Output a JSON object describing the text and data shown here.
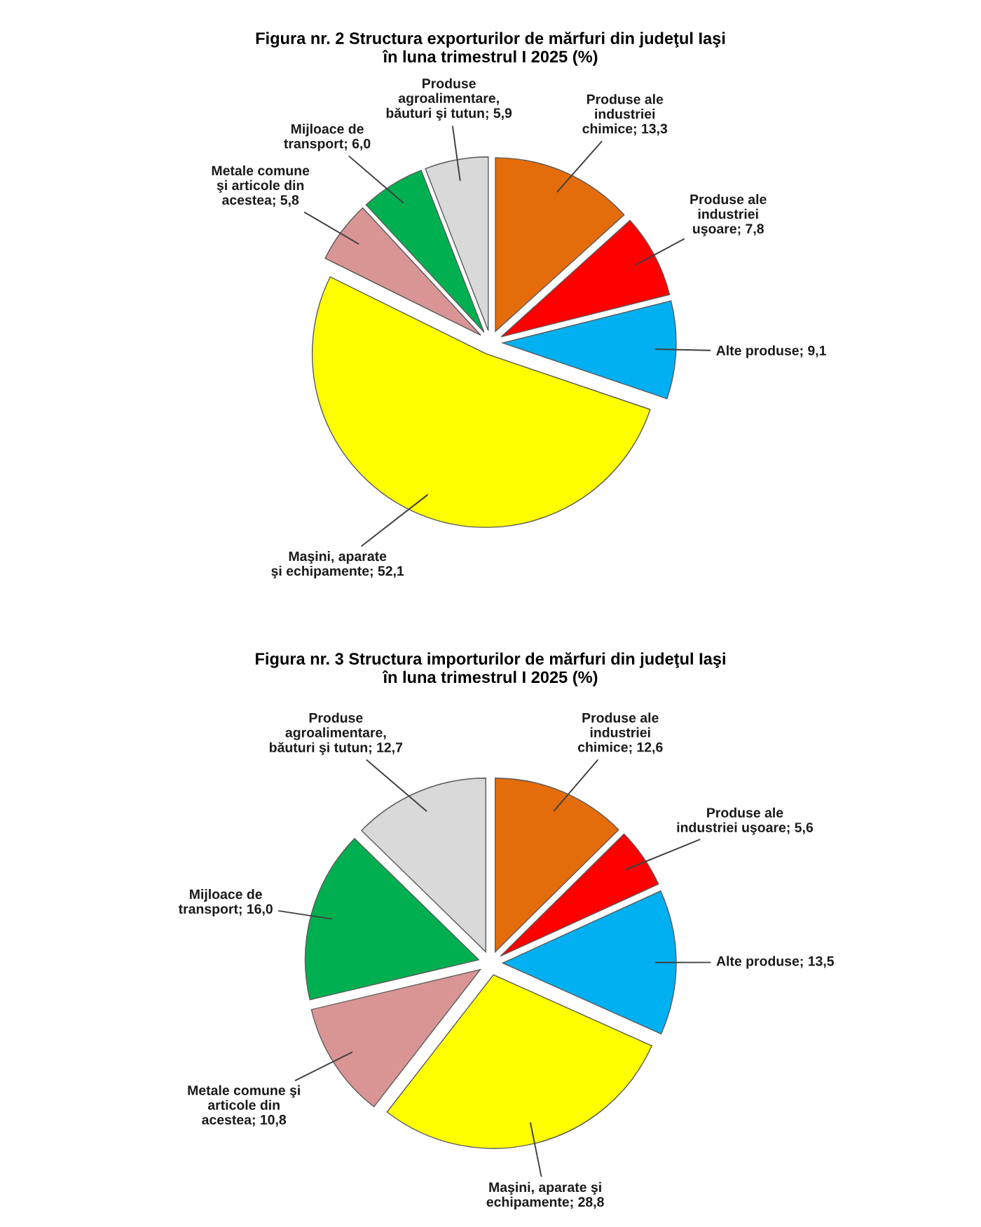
{
  "chart_data": [
    {
      "type": "pie",
      "title": "Figura nr. 2 Structura exporturilor de mărfuri din judeţul Iaşi\nîn luna trimestrul I 2025 (%)",
      "categories": [
        "Produse ale\nindustriei\nchimice",
        "Produse ale\nindustriei\nuşoare",
        "Alte produse",
        "Maşini, aparate\nşi echipamente",
        "Metale comune\nşi articole din\nacestea",
        "Mijloace de\ntransport",
        "Produse\nagroalimentare,\nbăuturi şi tutun"
      ],
      "values": [
        13.3,
        7.8,
        9.1,
        52.1,
        5.8,
        6.0,
        5.9
      ],
      "value_labels": [
        "13,3",
        "7,8",
        "9,1",
        "52,1",
        "5,8",
        "6,0",
        "5,9"
      ],
      "colors": [
        "#e46c0a",
        "#ff0000",
        "#00b0f0",
        "#ffff00",
        "#d99594",
        "#00b050",
        "#d9d9d9"
      ]
    },
    {
      "type": "pie",
      "title": "Figura nr. 3 Structura importurilor de mărfuri din judeţul Iaşi\nîn luna trimestrul I 2025 (%)",
      "categories": [
        "Produse ale\nindustriei\nchimice",
        "Produse ale\nindustriei uşoare",
        "Alte produse",
        "Maşini, aparate şi\nechipamente",
        "Metale comune şi\narticole din\nacestea",
        "Mijloace de\ntransport",
        "Produse\nagroalimentare,\nbăuturi şi tutun"
      ],
      "values": [
        12.6,
        5.6,
        13.5,
        28.8,
        10.8,
        16.0,
        12.7
      ],
      "value_labels": [
        "12,6",
        "5,6",
        "13,5",
        "28,8",
        "10,8",
        "16,0",
        "12,7"
      ],
      "colors": [
        "#e46c0a",
        "#ff0000",
        "#00b0f0",
        "#ffff00",
        "#d99594",
        "#00b050",
        "#d9d9d9"
      ]
    }
  ]
}
